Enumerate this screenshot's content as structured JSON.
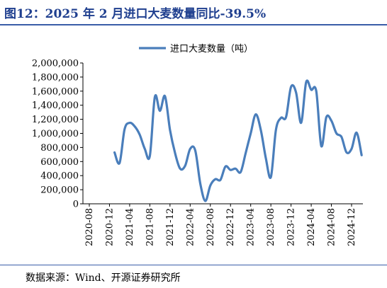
{
  "figure": {
    "title": "图12：2025 年 2 月进口大麦数量同比-39.5%",
    "source": "数据来源：Wind、开源证券研究所"
  },
  "colors": {
    "line": "#4a7ebb",
    "accent": "#1f3f8f",
    "rule": "#3a5da8"
  },
  "chart_data": {
    "type": "line",
    "title": "",
    "xlabel": "",
    "ylabel": "",
    "ylim": [
      0,
      2000000
    ],
    "yticks": [
      0,
      200000,
      400000,
      600000,
      800000,
      1000000,
      1200000,
      1400000,
      1600000,
      1800000,
      2000000
    ],
    "ytick_labels": [
      "0",
      "200,000",
      "400,000",
      "600,000",
      "800,000",
      "1,000,000",
      "1,200,000",
      "1,400,000",
      "1,600,000",
      "1,800,000",
      "2,000,000"
    ],
    "xtick_labels": [
      "2020-08",
      "2020-12",
      "2021-04",
      "2021-08",
      "2021-12",
      "2022-04",
      "2022-08",
      "2022-12",
      "2023-04",
      "2023-08",
      "2023-12",
      "2024-04",
      "2024-08",
      "2024-12"
    ],
    "grid": false,
    "legend": {
      "position": "top-center",
      "entries": [
        "进口大麦数量（吨）"
      ]
    },
    "series": [
      {
        "name": "进口大麦数量（吨）",
        "x": [
          "2021-01",
          "2021-02",
          "2021-03",
          "2021-04",
          "2021-05",
          "2021-06",
          "2021-07",
          "2021-08",
          "2021-09",
          "2021-10",
          "2021-11",
          "2021-12",
          "2022-01",
          "2022-02",
          "2022-03",
          "2022-04",
          "2022-05",
          "2022-06",
          "2022-07",
          "2022-08",
          "2022-09",
          "2022-10",
          "2022-11",
          "2022-12",
          "2023-01",
          "2023-02",
          "2023-03",
          "2023-04",
          "2023-05",
          "2023-06",
          "2023-07",
          "2023-08",
          "2023-09",
          "2023-10",
          "2023-11",
          "2023-12",
          "2024-01",
          "2024-02",
          "2024-03",
          "2024-04",
          "2024-05",
          "2024-06",
          "2024-07",
          "2024-08",
          "2024-09",
          "2024-10",
          "2024-11",
          "2024-12",
          "2025-01",
          "2025-02"
        ],
        "values": [
          730000,
          580000,
          1060000,
          1150000,
          1100000,
          980000,
          780000,
          680000,
          1520000,
          1320000,
          1530000,
          1050000,
          720000,
          500000,
          540000,
          780000,
          760000,
          290000,
          40000,
          260000,
          350000,
          340000,
          530000,
          480000,
          500000,
          450000,
          720000,
          1000000,
          1270000,
          1050000,
          650000,
          380000,
          1050000,
          1220000,
          1230000,
          1660000,
          1580000,
          1150000,
          1730000,
          1620000,
          1600000,
          820000,
          1230000,
          1180000,
          1000000,
          950000,
          730000,
          780000,
          1010000,
          690000
        ]
      }
    ]
  }
}
